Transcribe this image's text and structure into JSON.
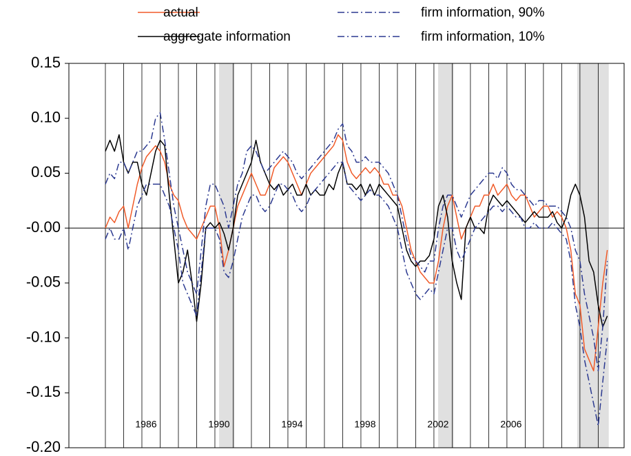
{
  "chart_data": {
    "type": "line",
    "x": [
      1984,
      1984.25,
      1984.5,
      1984.75,
      1985,
      1985.25,
      1985.5,
      1985.75,
      1986,
      1986.25,
      1986.5,
      1986.75,
      1987,
      1987.25,
      1987.5,
      1987.75,
      1988,
      1988.25,
      1988.5,
      1988.75,
      1989,
      1989.25,
      1989.5,
      1989.75,
      1990,
      1990.25,
      1990.5,
      1990.75,
      1991,
      1991.25,
      1991.5,
      1991.75,
      1992,
      1992.25,
      1992.5,
      1992.75,
      1993,
      1993.25,
      1993.5,
      1993.75,
      1994,
      1994.25,
      1994.5,
      1994.75,
      1995,
      1995.25,
      1995.5,
      1995.75,
      1996,
      1996.25,
      1996.5,
      1996.75,
      1997,
      1997.25,
      1997.5,
      1997.75,
      1998,
      1998.25,
      1998.5,
      1998.75,
      1999,
      1999.25,
      1999.5,
      1999.75,
      2000,
      2000.25,
      2000.5,
      2000.75,
      2001,
      2001.25,
      2001.5,
      2001.75,
      2002,
      2002.25,
      2002.5,
      2002.75,
      2003,
      2003.25,
      2003.5,
      2003.75,
      2004,
      2004.25,
      2004.5,
      2004.75,
      2005,
      2005.25,
      2005.5,
      2005.75,
      2006,
      2006.25,
      2006.5,
      2006.75,
      2007,
      2007.25,
      2007.5,
      2007.75,
      2008,
      2008.25,
      2008.5,
      2008.75,
      2009,
      2009.25,
      2009.5,
      2009.75,
      2010,
      2010.25,
      2010.5,
      2010.75,
      2011,
      2011.25,
      2011.5
    ],
    "series": [
      {
        "name": "actual",
        "color": "#f05a28",
        "style": "solid",
        "values": [
          0.0,
          0.01,
          0.005,
          0.015,
          0.02,
          0.0,
          0.02,
          0.04,
          0.055,
          0.065,
          0.07,
          0.075,
          0.07,
          0.06,
          0.04,
          0.03,
          0.025,
          0.01,
          0.0,
          -0.005,
          -0.01,
          0.0,
          0.01,
          0.02,
          0.02,
          0.0,
          -0.035,
          -0.02,
          0.0,
          0.02,
          0.03,
          0.04,
          0.05,
          0.04,
          0.03,
          0.03,
          0.04,
          0.055,
          0.06,
          0.065,
          0.06,
          0.05,
          0.04,
          0.03,
          0.04,
          0.05,
          0.055,
          0.06,
          0.065,
          0.07,
          0.075,
          0.085,
          0.08,
          0.06,
          0.05,
          0.045,
          0.05,
          0.055,
          0.05,
          0.055,
          0.05,
          0.04,
          0.04,
          0.03,
          0.03,
          0.02,
          0.0,
          -0.02,
          -0.03,
          -0.04,
          -0.045,
          -0.05,
          -0.05,
          -0.03,
          0.0,
          0.02,
          0.03,
          0.01,
          -0.01,
          0.0,
          0.01,
          0.02,
          0.02,
          0.03,
          0.03,
          0.04,
          0.03,
          0.035,
          0.04,
          0.03,
          0.025,
          0.03,
          0.03,
          0.02,
          0.01,
          0.015,
          0.02,
          0.02,
          0.01,
          0.015,
          0.01,
          0.0,
          -0.02,
          -0.06,
          -0.07,
          -0.11,
          -0.12,
          -0.13,
          -0.09,
          -0.05,
          -0.02
        ]
      },
      {
        "name": "aggregate information",
        "color": "#000000",
        "style": "solid",
        "values": [
          0.07,
          0.08,
          0.07,
          0.085,
          0.06,
          0.05,
          0.06,
          0.06,
          0.04,
          0.03,
          0.05,
          0.07,
          0.08,
          0.075,
          0.03,
          -0.01,
          -0.05,
          -0.04,
          -0.02,
          -0.05,
          -0.085,
          -0.05,
          0.0,
          0.005,
          0.0,
          0.005,
          -0.005,
          -0.02,
          0.0,
          0.03,
          0.04,
          0.05,
          0.06,
          0.08,
          0.06,
          0.05,
          0.04,
          0.035,
          0.04,
          0.03,
          0.035,
          0.04,
          0.03,
          0.03,
          0.04,
          0.03,
          0.035,
          0.03,
          0.03,
          0.04,
          0.035,
          0.05,
          0.06,
          0.04,
          0.04,
          0.035,
          0.04,
          0.03,
          0.04,
          0.03,
          0.04,
          0.035,
          0.03,
          0.025,
          0.02,
          0.0,
          -0.02,
          -0.03,
          -0.035,
          -0.03,
          -0.03,
          -0.025,
          -0.01,
          0.02,
          0.03,
          0.01,
          -0.03,
          -0.05,
          -0.065,
          0.0,
          0.01,
          0.0,
          0.0,
          -0.005,
          0.02,
          0.03,
          0.025,
          0.02,
          0.025,
          0.02,
          0.015,
          0.01,
          0.005,
          0.01,
          0.015,
          0.01,
          0.01,
          0.01,
          0.015,
          0.005,
          0.0,
          0.01,
          0.03,
          0.04,
          0.03,
          0.01,
          -0.03,
          -0.04,
          -0.07,
          -0.09,
          -0.08
        ]
      },
      {
        "name": "firm information, 90%",
        "color": "#2b3990",
        "style": "dashdot",
        "values": [
          0.04,
          0.05,
          0.045,
          0.06,
          0.06,
          0.05,
          0.06,
          0.07,
          0.07,
          0.075,
          0.08,
          0.1,
          0.105,
          0.08,
          0.05,
          0.02,
          0.0,
          -0.02,
          -0.04,
          -0.05,
          -0.06,
          -0.02,
          0.02,
          0.04,
          0.04,
          0.03,
          0.02,
          0.0,
          0.02,
          0.04,
          0.05,
          0.07,
          0.075,
          0.07,
          0.06,
          0.05,
          0.055,
          0.06,
          0.065,
          0.07,
          0.065,
          0.06,
          0.05,
          0.045,
          0.05,
          0.055,
          0.06,
          0.065,
          0.07,
          0.075,
          0.08,
          0.09,
          0.095,
          0.075,
          0.07,
          0.06,
          0.06,
          0.065,
          0.06,
          0.06,
          0.06,
          0.055,
          0.05,
          0.04,
          0.03,
          0.01,
          -0.01,
          -0.025,
          -0.03,
          -0.035,
          -0.04,
          -0.03,
          -0.03,
          0.0,
          0.02,
          0.03,
          0.03,
          0.02,
          0.01,
          0.02,
          0.03,
          0.035,
          0.04,
          0.045,
          0.05,
          0.05,
          0.045,
          0.055,
          0.05,
          0.04,
          0.035,
          0.035,
          0.03,
          0.025,
          0.02,
          0.025,
          0.025,
          0.02,
          0.02,
          0.02,
          0.015,
          0.01,
          0.0,
          -0.02,
          -0.03,
          -0.06,
          -0.08,
          -0.1,
          -0.13,
          -0.09,
          -0.03
        ]
      },
      {
        "name": "firm information, 10%",
        "color": "#2b3990",
        "style": "dashdot",
        "values": [
          -0.01,
          0.0,
          -0.01,
          -0.01,
          0.0,
          -0.02,
          0.0,
          0.02,
          0.03,
          0.04,
          0.04,
          0.04,
          0.04,
          0.03,
          0.02,
          0.0,
          -0.02,
          -0.05,
          -0.06,
          -0.07,
          -0.08,
          -0.04,
          0.0,
          0.0,
          0.0,
          -0.01,
          -0.04,
          -0.045,
          -0.03,
          -0.01,
          0.01,
          0.02,
          0.03,
          0.03,
          0.02,
          0.015,
          0.02,
          0.03,
          0.04,
          0.04,
          0.035,
          0.03,
          0.02,
          0.015,
          0.02,
          0.03,
          0.035,
          0.04,
          0.045,
          0.05,
          0.055,
          0.06,
          0.06,
          0.04,
          0.035,
          0.03,
          0.025,
          0.03,
          0.035,
          0.03,
          0.03,
          0.025,
          0.02,
          0.01,
          0.0,
          -0.02,
          -0.04,
          -0.05,
          -0.06,
          -0.065,
          -0.06,
          -0.055,
          -0.06,
          -0.04,
          -0.02,
          0.0,
          0.0,
          -0.02,
          -0.03,
          -0.02,
          -0.01,
          0.0,
          0.005,
          0.01,
          0.015,
          0.02,
          0.02,
          0.015,
          0.02,
          0.015,
          0.01,
          0.01,
          0.0,
          0.0,
          0.005,
          0.0,
          0.0,
          0.0,
          0.005,
          0.0,
          -0.005,
          -0.01,
          -0.03,
          -0.07,
          -0.09,
          -0.12,
          -0.14,
          -0.16,
          -0.18,
          -0.14,
          -0.1
        ]
      }
    ],
    "xlim": [
      1982,
      2012.42
    ],
    "xticks": [
      1986,
      1990,
      1994,
      1998,
      2002,
      2006
    ],
    "xgrid": [
      1984,
      1985,
      1986,
      1987,
      1988,
      1989,
      1990,
      1991,
      1992,
      1993,
      1994,
      1995,
      1996,
      1997,
      1998,
      1999,
      2000,
      2001,
      2002,
      2003,
      2004,
      2005,
      2006,
      2007,
      2008,
      2009,
      2010,
      2011
    ],
    "shaded": [
      [
        1990.23,
        1991.09
      ],
      [
        2002.23,
        2003.1
      ],
      [
        2009.85,
        2011.58
      ]
    ],
    "ylim": [
      -0.2,
      0.15
    ],
    "yticks": [
      {
        "value": -0.2,
        "label": "-0.20"
      },
      -0.15,
      {
        "value": -0.1,
        "label": "-0.10"
      },
      -0.05,
      {
        "value": 0,
        "label": "-0.00"
      },
      0.05,
      {
        "value": 0.1,
        "label": "0.10"
      },
      0.15
    ]
  }
}
